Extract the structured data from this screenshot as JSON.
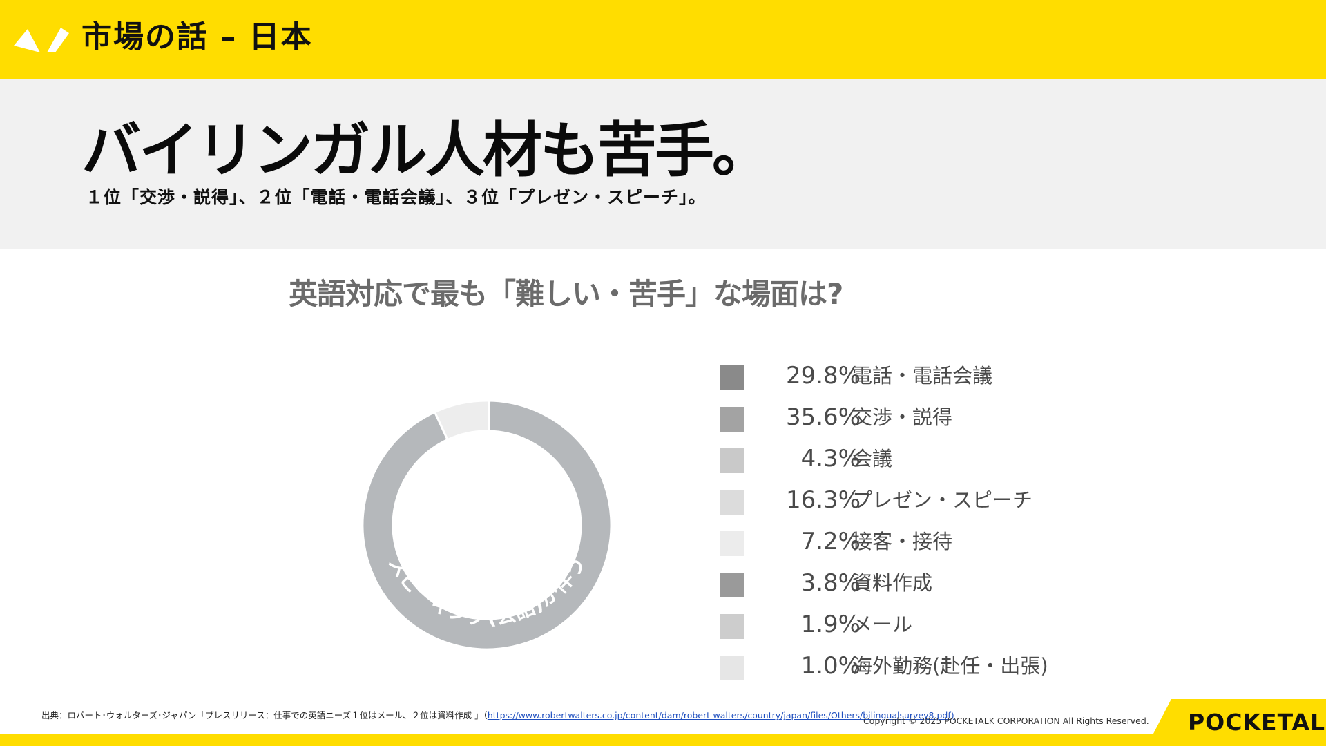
{
  "header": {
    "title": "市場の話 – 日本"
  },
  "hero": {
    "headline": "バイリンガル人材も苦手。",
    "subline": "１位「交渉・説得」、２位「電話・電話会議」、３位「プレゼン・スピーチ」。"
  },
  "chart_data": {
    "type": "pie",
    "title": "英語対応で最も「難しい・苦手」な場面は?",
    "donut_annotation": "スピーキング(会話)が伴う",
    "categories": [
      "電話・電話会議",
      "交渉・説得",
      "会議",
      "プレゼン・スピーチ",
      "接客・接待",
      "資料作成",
      "メール",
      "海外勤務(赴任・出張)"
    ],
    "values": [
      29.8,
      35.6,
      4.3,
      16.3,
      7.2,
      3.8,
      1.9,
      1.0
    ],
    "value_labels": [
      "29.8%",
      "35.6%",
      "4.3%",
      "16.3%",
      "7.2%",
      "3.8%",
      "1.9%",
      "1.0%"
    ],
    "colors": [
      "#8a8a8a",
      "#a3a3a3",
      "#c9c9c9",
      "#dcdcdc",
      "#ececec",
      "#9a9a9a",
      "#cdcdcd",
      "#e6e6e6"
    ],
    "ring_colors": {
      "speaking": "#b5b8bb",
      "other": "#ededed"
    },
    "legend_position": "right"
  },
  "footer": {
    "source_prefix": "出典：ロバート･ウォルターズ･ジャパン「プレスリリース：仕事での英語ニーズ１位はメール、２位は資料作成 」（",
    "source_link": "https://www.robertwalters.co.jp/content/dam/robert-walters/country/japan/files/Others/bilingualsurvey8.pdf)",
    "copyright": "Copyright © 2025 POCKETALK CORPORATION All Rights Reserved.",
    "brand": "POCKETALK"
  },
  "colors": {
    "accent_yellow": "#ffdd00",
    "hero_bg": "#f1f1f1"
  }
}
